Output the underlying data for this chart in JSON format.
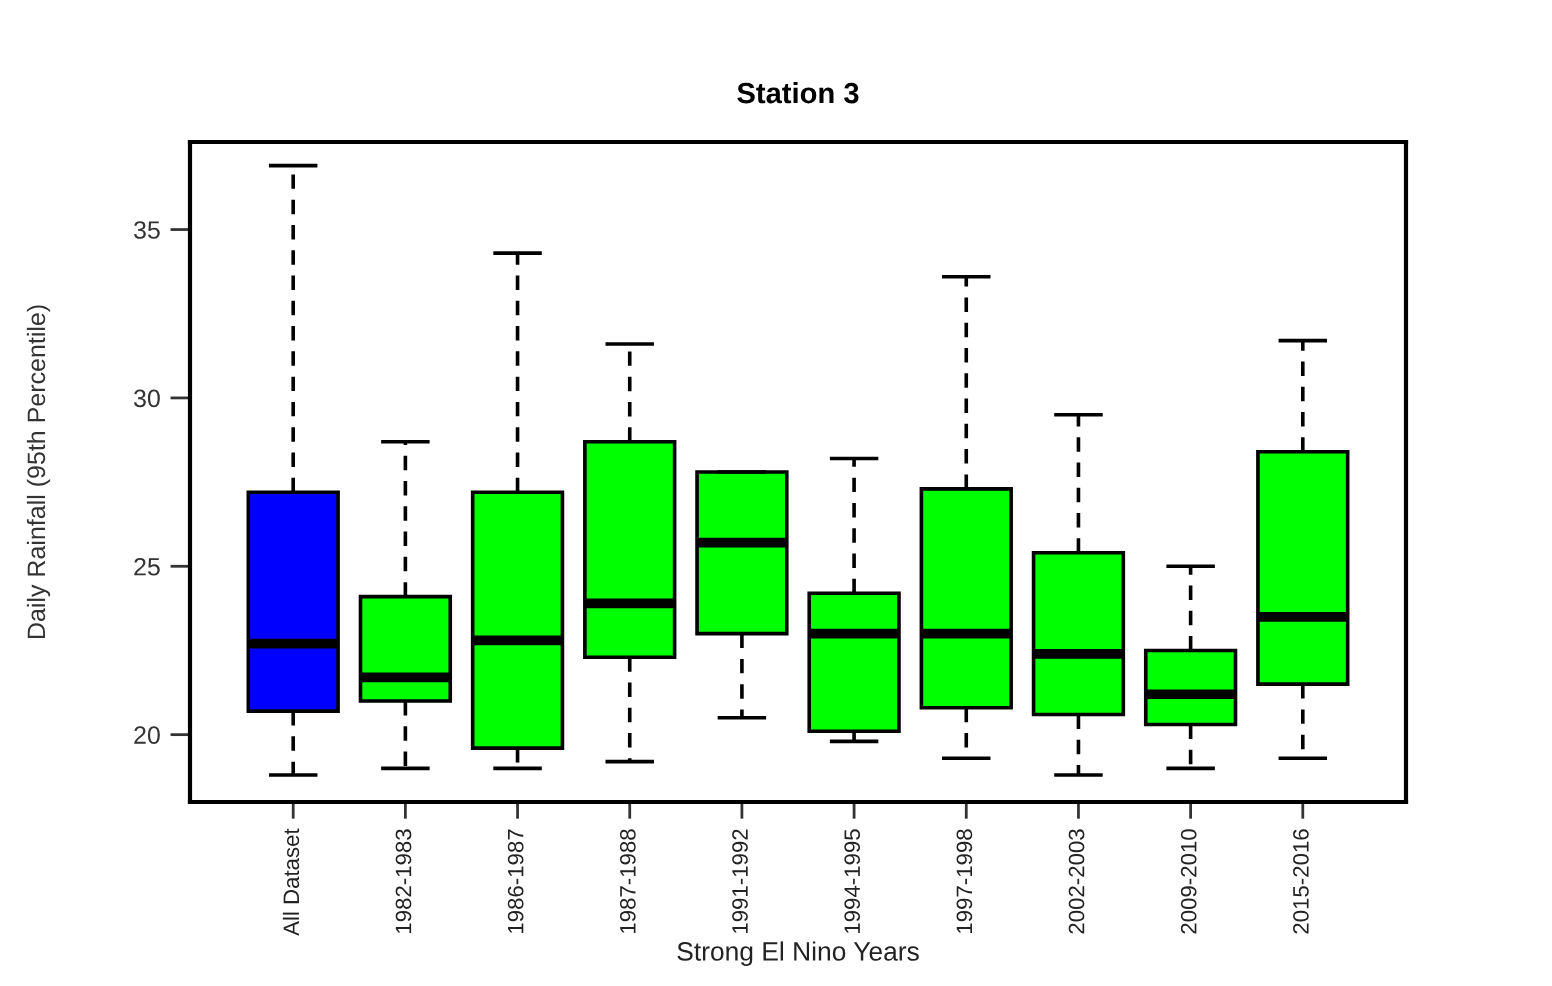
{
  "chart_data": {
    "type": "box",
    "title": "Station 3",
    "xlabel": "Strong El Nino Years",
    "ylabel": "Daily Rainfall (95th Percentile)",
    "categories": [
      "All Dataset",
      "1982-1983",
      "1986-1987",
      "1987-1988",
      "1991-1992",
      "1994-1995",
      "1997-1998",
      "2002-2003",
      "2009-2010",
      "2015-2016"
    ],
    "boxes": [
      {
        "low": 18.8,
        "q1": 20.7,
        "median": 22.7,
        "q3": 27.2,
        "high": 36.9
      },
      {
        "low": 19.0,
        "q1": 21.0,
        "median": 21.7,
        "q3": 24.1,
        "high": 28.7
      },
      {
        "low": 19.0,
        "q1": 19.6,
        "median": 22.8,
        "q3": 27.2,
        "high": 34.3
      },
      {
        "low": 19.2,
        "q1": 22.3,
        "median": 23.9,
        "q3": 28.7,
        "high": 31.6
      },
      {
        "low": 20.5,
        "q1": 23.0,
        "median": 25.7,
        "q3": 27.8,
        "high": 27.8
      },
      {
        "low": 19.8,
        "q1": 20.1,
        "median": 23.0,
        "q3": 24.2,
        "high": 28.2
      },
      {
        "low": 19.3,
        "q1": 20.8,
        "median": 23.0,
        "q3": 27.3,
        "high": 33.6
      },
      {
        "low": 18.8,
        "q1": 20.6,
        "median": 22.4,
        "q3": 25.4,
        "high": 29.5
      },
      {
        "low": 19.0,
        "q1": 20.3,
        "median": 21.2,
        "q3": 22.5,
        "high": 25.0
      },
      {
        "low": 19.3,
        "q1": 21.5,
        "median": 23.5,
        "q3": 28.4,
        "high": 31.7
      }
    ],
    "colors": [
      "#0000ff",
      "#00ff00",
      "#00ff00",
      "#00ff00",
      "#00ff00",
      "#00ff00",
      "#00ff00",
      "#00ff00",
      "#00ff00",
      "#00ff00"
    ],
    "ylim": [
      18.0,
      37.6
    ],
    "yticks": [
      20,
      25,
      30,
      35
    ],
    "grid": false
  }
}
